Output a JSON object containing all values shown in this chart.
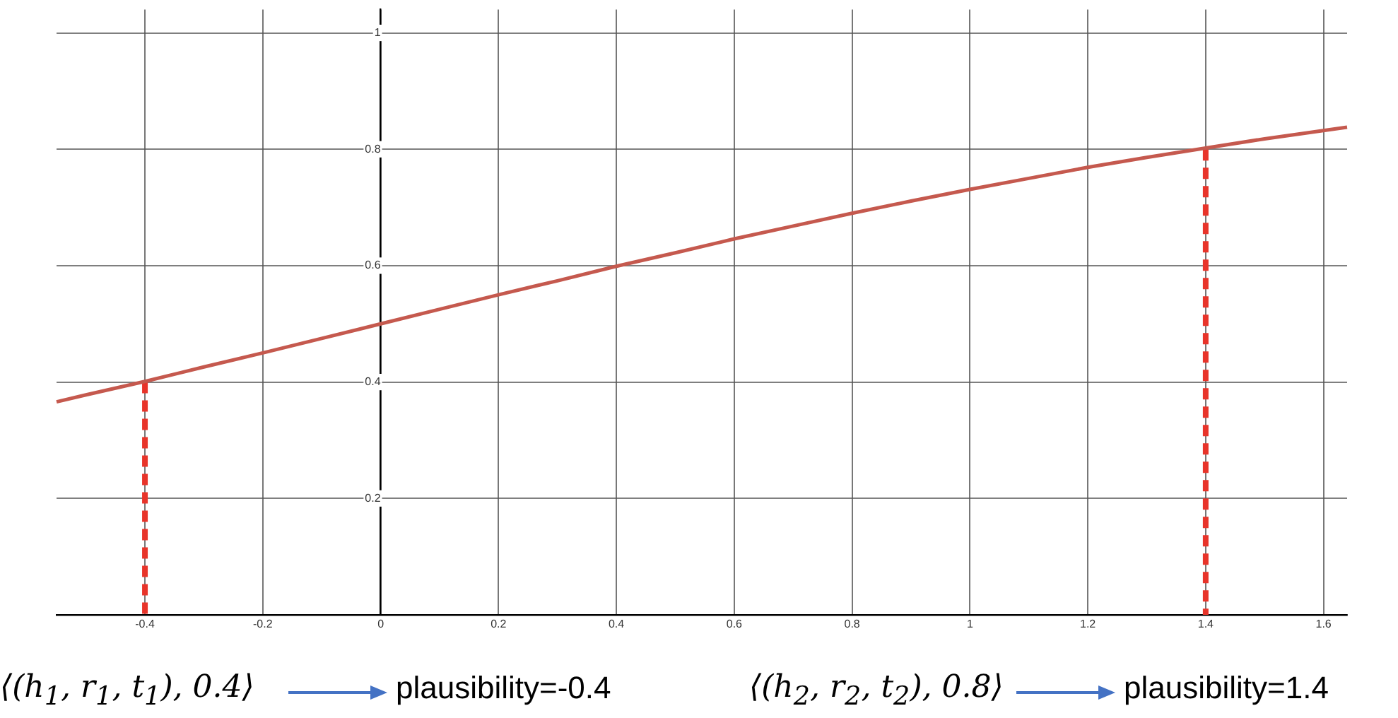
{
  "chart_data": {
    "type": "line",
    "xlim": [
      -0.55,
      1.64
    ],
    "ylim": [
      0,
      1.04
    ],
    "xticks": [
      -0.4,
      -0.2,
      0,
      0.2,
      0.4,
      0.6,
      0.8,
      1,
      1.2,
      1.4,
      1.6
    ],
    "yticks": [
      0.2,
      0.4,
      0.6,
      0.8,
      1
    ],
    "grid": true,
    "legend": false,
    "marker": "none",
    "series": [
      {
        "color": "#c5594e",
        "line_style": "solid",
        "x": [
          -0.55,
          -0.5,
          -0.4,
          -0.3,
          -0.2,
          -0.1,
          0,
          0.1,
          0.2,
          0.3,
          0.4,
          0.5,
          0.6,
          0.7,
          0.8,
          0.9,
          1,
          1.1,
          1.2,
          1.3,
          1.4,
          1.5,
          1.64
        ],
        "values": [
          0.366,
          0.378,
          0.401,
          0.426,
          0.45,
          0.475,
          0.5,
          0.525,
          0.55,
          0.574,
          0.599,
          0.622,
          0.646,
          0.668,
          0.69,
          0.711,
          0.731,
          0.75,
          0.769,
          0.786,
          0.802,
          0.818,
          0.838
        ]
      },
      {
        "color": "#e8342a",
        "line_style": "dashed",
        "x": [
          -0.4,
          -0.4
        ],
        "values": [
          0.4,
          0
        ]
      },
      {
        "color": "#e8342a",
        "line_style": "dashed",
        "x": [
          1.4,
          1.4
        ],
        "values": [
          0.8,
          0
        ]
      }
    ],
    "annotations": [
      "⟨(h$_{1}$, r$_{1}$, t$_{1}$), 0.4⟩",
      "plausibility=-0.4",
      "⟨(h$_{2}$, r$_{2}$, t$_{2}$), 0.8⟩",
      "plausibility=1.4"
    ]
  }
}
